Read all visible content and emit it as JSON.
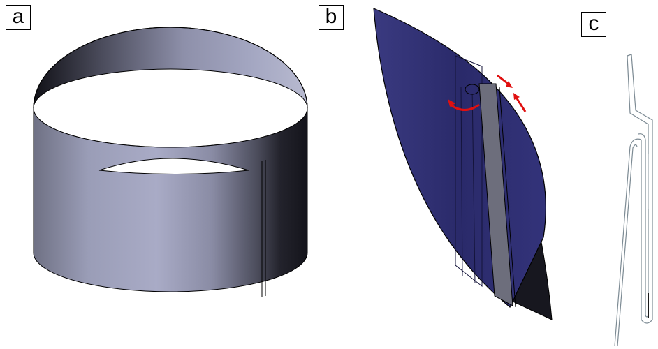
{
  "panels": {
    "a": {
      "label": "a"
    },
    "b": {
      "label": "b"
    },
    "c": {
      "label": "c"
    }
  },
  "colors": {
    "cylinder_light": "#9da0bd",
    "cylinder_dark": "#17171f",
    "leaf_blue": "#2c2c6e",
    "rod_gray": "#6d6e7c",
    "arrow_red": "#e01010",
    "profile_stroke": "#7d8b94"
  }
}
